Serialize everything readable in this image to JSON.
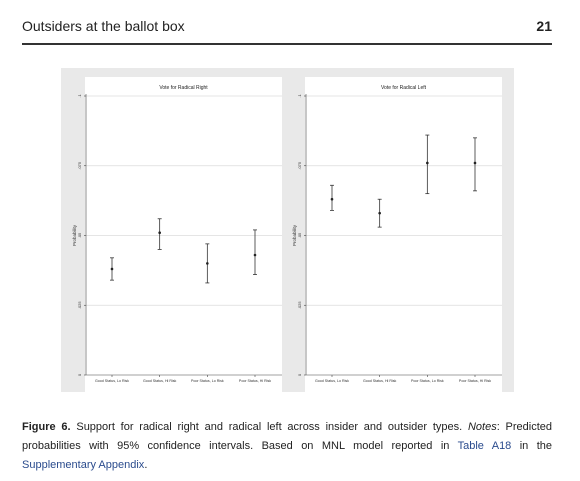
{
  "header": {
    "running_title": "Outsiders at the ballot box",
    "page_number": "21"
  },
  "figure": {
    "caption_label": "Figure 6.",
    "caption_text_1": " Support for radical right and radical left across insider and outsider types. ",
    "caption_notes": "Notes",
    "caption_text_2": ": Predicted probabilities with 95% confidence intervals. Based on MNL model reported in ",
    "caption_link_table": "Table A18",
    "caption_text_3": " in the ",
    "caption_link_appendix": "Supplementary Appendix",
    "caption_text_4": "."
  },
  "chart_data": [
    {
      "type": "scatter",
      "title": "Vote for Radical Right",
      "ylabel": "Probability",
      "ylim": [
        0,
        0.1
      ],
      "yticks": [
        0,
        0.025,
        0.05,
        0.075,
        0.1
      ],
      "ytick_labels": [
        "0",
        ".025",
        ".05",
        ".075",
        ".1"
      ],
      "categories": [
        "Good Status, Lo Risk",
        "Good Status, Hi Risk",
        "Poor Status, Lo Risk",
        "Poor Status, Hi Risk"
      ],
      "values": [
        0.038,
        0.051,
        0.04,
        0.043
      ],
      "ci_low": [
        0.034,
        0.045,
        0.033,
        0.036
      ],
      "ci_high": [
        0.042,
        0.056,
        0.047,
        0.052
      ],
      "grid": true
    },
    {
      "type": "scatter",
      "title": "Vote for Radical Left",
      "ylabel": "Probability",
      "ylim": [
        0,
        0.1
      ],
      "yticks": [
        0,
        0.025,
        0.05,
        0.075,
        0.1
      ],
      "ytick_labels": [
        "0",
        ".025",
        ".05",
        ".075",
        ".1"
      ],
      "categories": [
        "Good Status, Lo Risk",
        "Good Status, Hi Risk",
        "Poor Status, Lo Risk",
        "Poor Status, Hi Risk"
      ],
      "values": [
        0.063,
        0.058,
        0.076,
        0.076
      ],
      "ci_low": [
        0.059,
        0.053,
        0.065,
        0.066
      ],
      "ci_high": [
        0.068,
        0.063,
        0.086,
        0.085
      ],
      "grid": true
    }
  ]
}
